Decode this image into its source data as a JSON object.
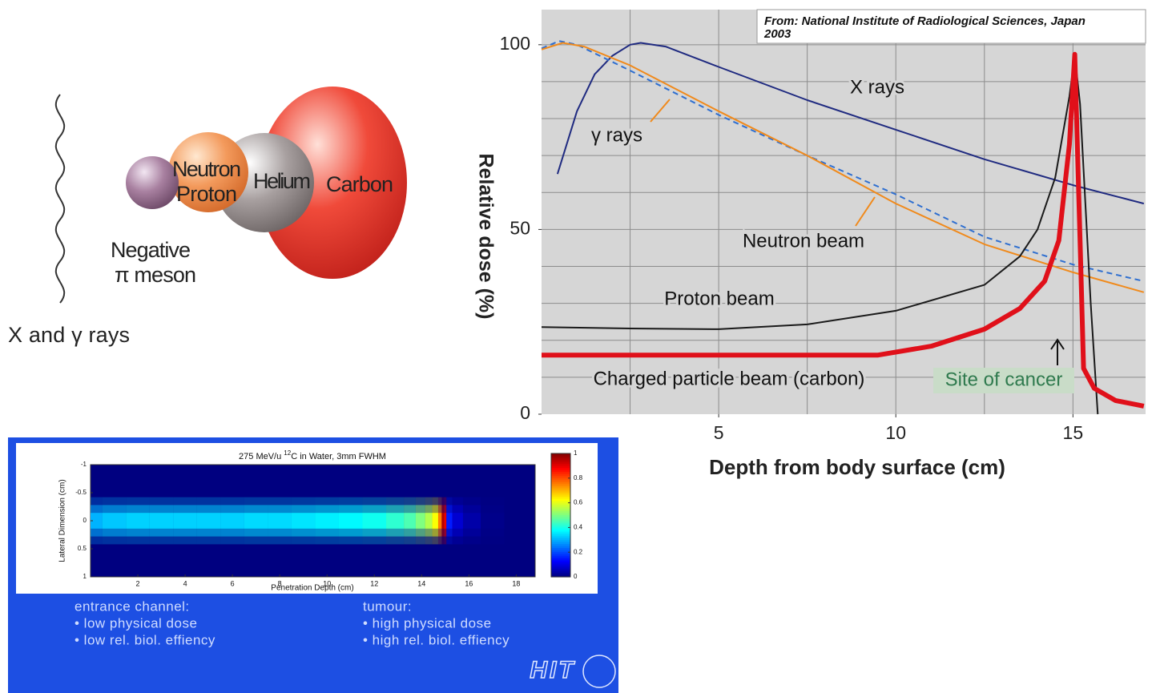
{
  "diagram": {
    "particles": [
      "Neutron",
      "Proton",
      "Helium",
      "Carbon"
    ],
    "pion": [
      "Negative",
      "π meson"
    ],
    "photons": "X and γ rays"
  },
  "chart_data": [
    {
      "type": "line",
      "source": [
        "From:  National Institute of Radiological Sciences, Japan",
        "2003"
      ],
      "xlabel": "Depth from body surface (cm)",
      "ylabel": "Relative dose (%)",
      "xlim": [
        0,
        17.05
      ],
      "ylim": [
        0,
        109.5
      ],
      "xticks": [
        5,
        10,
        15
      ],
      "yticks": [
        0,
        50,
        100
      ],
      "xgrid": [
        2.5,
        5,
        7.5,
        10,
        12.5,
        15
      ],
      "ygrid": [
        10,
        20,
        30,
        40,
        50,
        60,
        70,
        80,
        90,
        100
      ],
      "background": "#d6d6d6",
      "series": [
        {
          "name": "X rays",
          "color": "#1f2a80",
          "width": 2,
          "x": [
            0.45,
            1,
            1.5,
            2,
            2.5,
            2.8,
            3.5,
            5,
            7.5,
            10,
            12.5,
            15,
            17
          ],
          "values": [
            65,
            82,
            92,
            97,
            100,
            100.5,
            99.5,
            94,
            85,
            77,
            69,
            62,
            57
          ]
        },
        {
          "name": "γ rays",
          "color": "#2f6fd0",
          "width": 2,
          "dash": true,
          "x": [
            0,
            0.5,
            1,
            2.5,
            5,
            7.5,
            10,
            12.5,
            15,
            17
          ],
          "values": [
            99,
            101,
            100,
            93,
            81,
            70,
            59.5,
            48,
            40.5,
            36
          ]
        },
        {
          "name": "Neutron beam",
          "color": "#f08a1c",
          "width": 2,
          "x": [
            0,
            0.6,
            1.2,
            2.5,
            5,
            7.5,
            10,
            12.5,
            15,
            17
          ],
          "values": [
            98.7,
            100.5,
            99.5,
            94.4,
            82,
            70,
            57,
            46,
            38.4,
            33
          ]
        },
        {
          "name": "Proton beam",
          "color": "#1a1a1a",
          "width": 2,
          "x": [
            0,
            2.5,
            5,
            7.5,
            10,
            12.5,
            13.5,
            14,
            14.5,
            14.9,
            15.05,
            15.2,
            15.5,
            15.7
          ],
          "values": [
            23.6,
            23.2,
            23,
            24.3,
            28,
            35,
            42.7,
            50,
            64,
            86,
            97,
            84,
            30,
            0
          ]
        },
        {
          "name": "Charged particle beam (carbon)",
          "color": "#e0101a",
          "width": 6,
          "x": [
            0,
            5,
            9.5,
            11,
            12.5,
            13.5,
            14.2,
            14.6,
            14.9,
            15.05,
            15.2,
            15.3,
            15.6,
            16.2,
            17
          ],
          "values": [
            16,
            16,
            16,
            18.4,
            23,
            28.6,
            36,
            47,
            73,
            97.4,
            47,
            12.4,
            7,
            3.7,
            2.2
          ]
        }
      ],
      "annotation": "Site of cancer"
    },
    {
      "type": "heatmap",
      "title": [
        "275 MeV/u ",
        "12",
        "C in Water, 3mm FWHM"
      ],
      "xlabel": "Penetration Depth (cm)",
      "ylabel": "Lateral Dimension (cm)",
      "xlim": [
        0,
        18.8
      ],
      "ylim": [
        1,
        -1
      ],
      "xticks": [
        2,
        4,
        6,
        8,
        10,
        12,
        14,
        16,
        18
      ],
      "yticks": [
        -1,
        -0.5,
        0,
        0.5,
        1
      ],
      "colormap": "jet",
      "clim": [
        0,
        1
      ],
      "cticks": [
        0,
        0.2,
        0.4,
        0.6,
        0.8,
        1
      ],
      "x": [
        0,
        1,
        2,
        3,
        4,
        5,
        6,
        7,
        8,
        9,
        10,
        11,
        12,
        13,
        13.5,
        14,
        14.3,
        14.6,
        14.8,
        14.9,
        15.0,
        15.1,
        15.5,
        16,
        17,
        18
      ],
      "values": [
        0.3,
        0.32,
        0.33,
        0.33,
        0.33,
        0.33,
        0.33,
        0.34,
        0.34,
        0.35,
        0.36,
        0.37,
        0.39,
        0.42,
        0.45,
        0.5,
        0.55,
        0.62,
        0.75,
        0.95,
        0.9,
        0.15,
        0.08,
        0.04,
        0.01,
        0
      ]
    }
  ],
  "beam_panel": {
    "entrance": [
      "entrance channel:",
      "• low physical dose",
      "• low rel. biol. effiency"
    ],
    "tumour": [
      "tumour:",
      "• high physical dose",
      "• high rel. biol. effiency"
    ],
    "logo": "HIT"
  }
}
